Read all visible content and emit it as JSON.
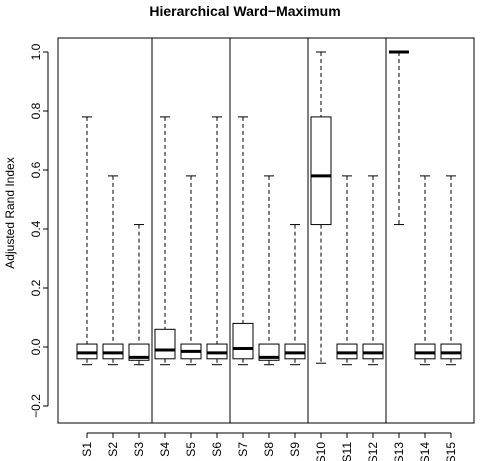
{
  "chart_data": {
    "type": "boxplot",
    "title": "Hierarchical Ward−Maximum",
    "xlabel": "",
    "ylabel": "Adjusted Rand Index",
    "ylim": [
      -0.22,
      1.05
    ],
    "yticks": [
      -0.2,
      0.0,
      0.2,
      0.4,
      0.6,
      0.8,
      1.0
    ],
    "ytick_labels": [
      "−0.2",
      "0.0",
      "0.2",
      "0.4",
      "0.6",
      "0.8",
      "1.0"
    ],
    "categories": [
      "S1",
      "S2",
      "S3",
      "S4",
      "S5",
      "S6",
      "S7",
      "S8",
      "S9",
      "S10",
      "S11",
      "S12",
      "S13",
      "S14",
      "S15"
    ],
    "group_separators_after": [
      "S3",
      "S6",
      "S9",
      "S12"
    ],
    "grid": false,
    "boxes": [
      {
        "label": "S1",
        "min": -0.06,
        "q1": -0.04,
        "median": -0.02,
        "q3": 0.01,
        "max": 0.78
      },
      {
        "label": "S2",
        "min": -0.06,
        "q1": -0.04,
        "median": -0.02,
        "q3": 0.01,
        "max": 0.58
      },
      {
        "label": "S3",
        "min": -0.06,
        "q1": -0.045,
        "median": -0.035,
        "q3": 0.01,
        "max": 0.415
      },
      {
        "label": "S4",
        "min": -0.06,
        "q1": -0.04,
        "median": -0.01,
        "q3": 0.06,
        "max": 0.78
      },
      {
        "label": "S5",
        "min": -0.06,
        "q1": -0.04,
        "median": -0.015,
        "q3": 0.01,
        "max": 0.58
      },
      {
        "label": "S6",
        "min": -0.06,
        "q1": -0.04,
        "median": -0.02,
        "q3": 0.01,
        "max": 0.78
      },
      {
        "label": "S7",
        "min": -0.06,
        "q1": -0.04,
        "median": -0.005,
        "q3": 0.08,
        "max": 0.78
      },
      {
        "label": "S8",
        "min": -0.06,
        "q1": -0.045,
        "median": -0.035,
        "q3": 0.01,
        "max": 0.58
      },
      {
        "label": "S9",
        "min": -0.06,
        "q1": -0.04,
        "median": -0.02,
        "q3": 0.01,
        "max": 0.415
      },
      {
        "label": "S10",
        "min": -0.055,
        "q1": 0.415,
        "median": 0.58,
        "q3": 0.78,
        "max": 1.0
      },
      {
        "label": "S11",
        "min": -0.06,
        "q1": -0.04,
        "median": -0.02,
        "q3": 0.01,
        "max": 0.58
      },
      {
        "label": "S12",
        "min": -0.06,
        "q1": -0.04,
        "median": -0.02,
        "q3": 0.01,
        "max": 0.58
      },
      {
        "label": "S13",
        "min": 0.415,
        "q1": 1.0,
        "median": 1.0,
        "q3": 1.0,
        "max": 1.0
      },
      {
        "label": "S14",
        "min": -0.06,
        "q1": -0.04,
        "median": -0.02,
        "q3": 0.01,
        "max": 0.58
      },
      {
        "label": "S15",
        "min": -0.06,
        "q1": -0.04,
        "median": -0.02,
        "q3": 0.01,
        "max": 0.58
      }
    ]
  }
}
